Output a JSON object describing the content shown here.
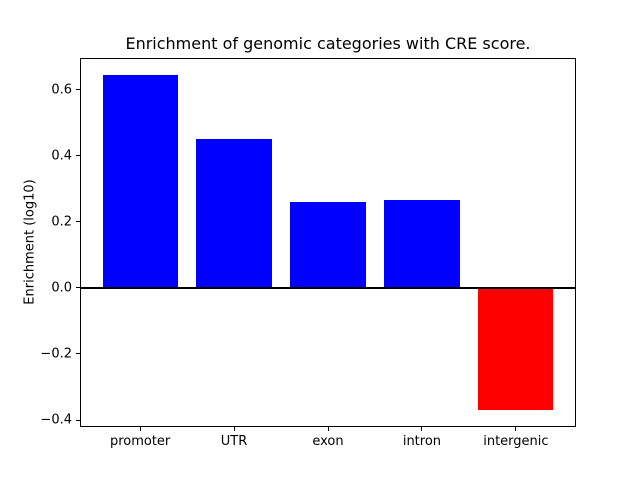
{
  "chart_data": {
    "type": "bar",
    "title": "Enrichment of genomic categories with CRE score.",
    "xlabel": "",
    "ylabel": "Enrichment (log10)",
    "categories": [
      "promoter",
      "UTR",
      "exon",
      "intron",
      "intergenic"
    ],
    "values": [
      0.645,
      0.45,
      0.26,
      0.265,
      -0.37
    ],
    "bar_colors": [
      "#0000ff",
      "#0000ff",
      "#0000ff",
      "#0000ff",
      "#ff0000"
    ],
    "positive_color": "#0000ff",
    "negative_color": "#ff0000",
    "ylim": [
      -0.421,
      0.696
    ],
    "yticks": [
      {
        "value": -0.4,
        "label": "−0.4"
      },
      {
        "value": -0.2,
        "label": "−0.2"
      },
      {
        "value": 0.0,
        "label": "0.0"
      },
      {
        "value": 0.2,
        "label": "0.2"
      },
      {
        "value": 0.4,
        "label": "0.4"
      },
      {
        "value": 0.6,
        "label": "0.6"
      }
    ],
    "zero_line": true,
    "grid": false,
    "legend": "none",
    "background": "#ffffff"
  }
}
